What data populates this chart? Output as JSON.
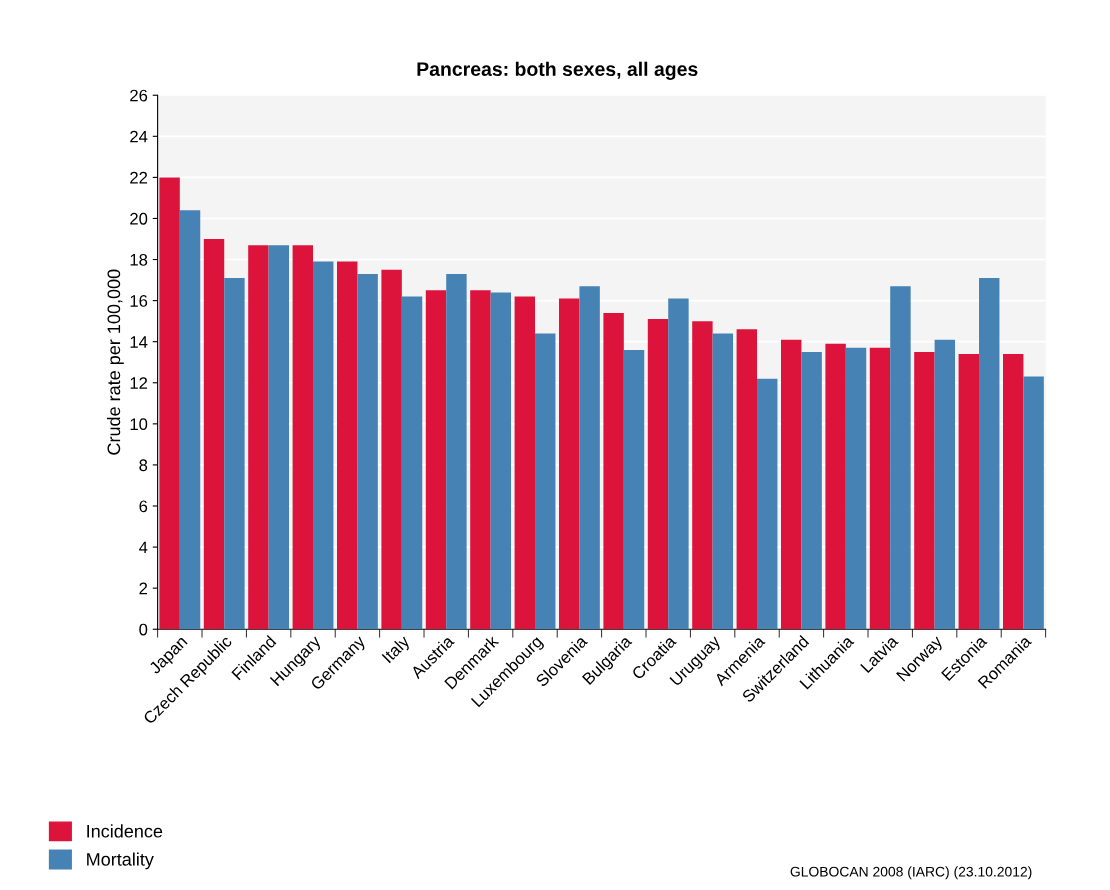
{
  "chart_data": {
    "type": "bar",
    "title": "Pancreas: both sexes, all ages",
    "ylabel": "Crude rate per 100,000",
    "categories": [
      "Japan",
      "Czech Republic",
      "Finland",
      "Hungary",
      "Germany",
      "Italy",
      "Austria",
      "Denmark",
      "Luxembourg",
      "Slovenia",
      "Bulgaria",
      "Croatia",
      "Uruguay",
      "Armenia",
      "Switzerland",
      "Lithuania",
      "Latvia",
      "Norway",
      "Estonia",
      "Romania"
    ],
    "series": [
      {
        "name": "Incidence",
        "color": "#dc143c",
        "values": [
          22.0,
          19.0,
          18.7,
          18.7,
          17.9,
          17.5,
          16.5,
          16.5,
          16.2,
          16.1,
          15.4,
          15.1,
          15.0,
          14.6,
          14.1,
          13.9,
          13.7,
          13.5,
          13.4,
          13.4
        ]
      },
      {
        "name": "Mortality",
        "color": "#4682b4",
        "values": [
          20.4,
          17.1,
          18.7,
          17.9,
          17.3,
          16.2,
          17.3,
          16.4,
          14.4,
          16.7,
          13.6,
          16.1,
          14.4,
          12.2,
          13.5,
          13.7,
          16.7,
          14.1,
          17.1,
          12.3
        ]
      }
    ],
    "ylim": [
      0,
      26
    ],
    "yticks": [
      0,
      2,
      4,
      6,
      8,
      10,
      12,
      14,
      16,
      18,
      20,
      22,
      24,
      26
    ],
    "grid": "y",
    "legend": "bottom left",
    "annotations": [
      "GLOBOCAN 2008 (IARC) (23.10.2012)"
    ]
  }
}
